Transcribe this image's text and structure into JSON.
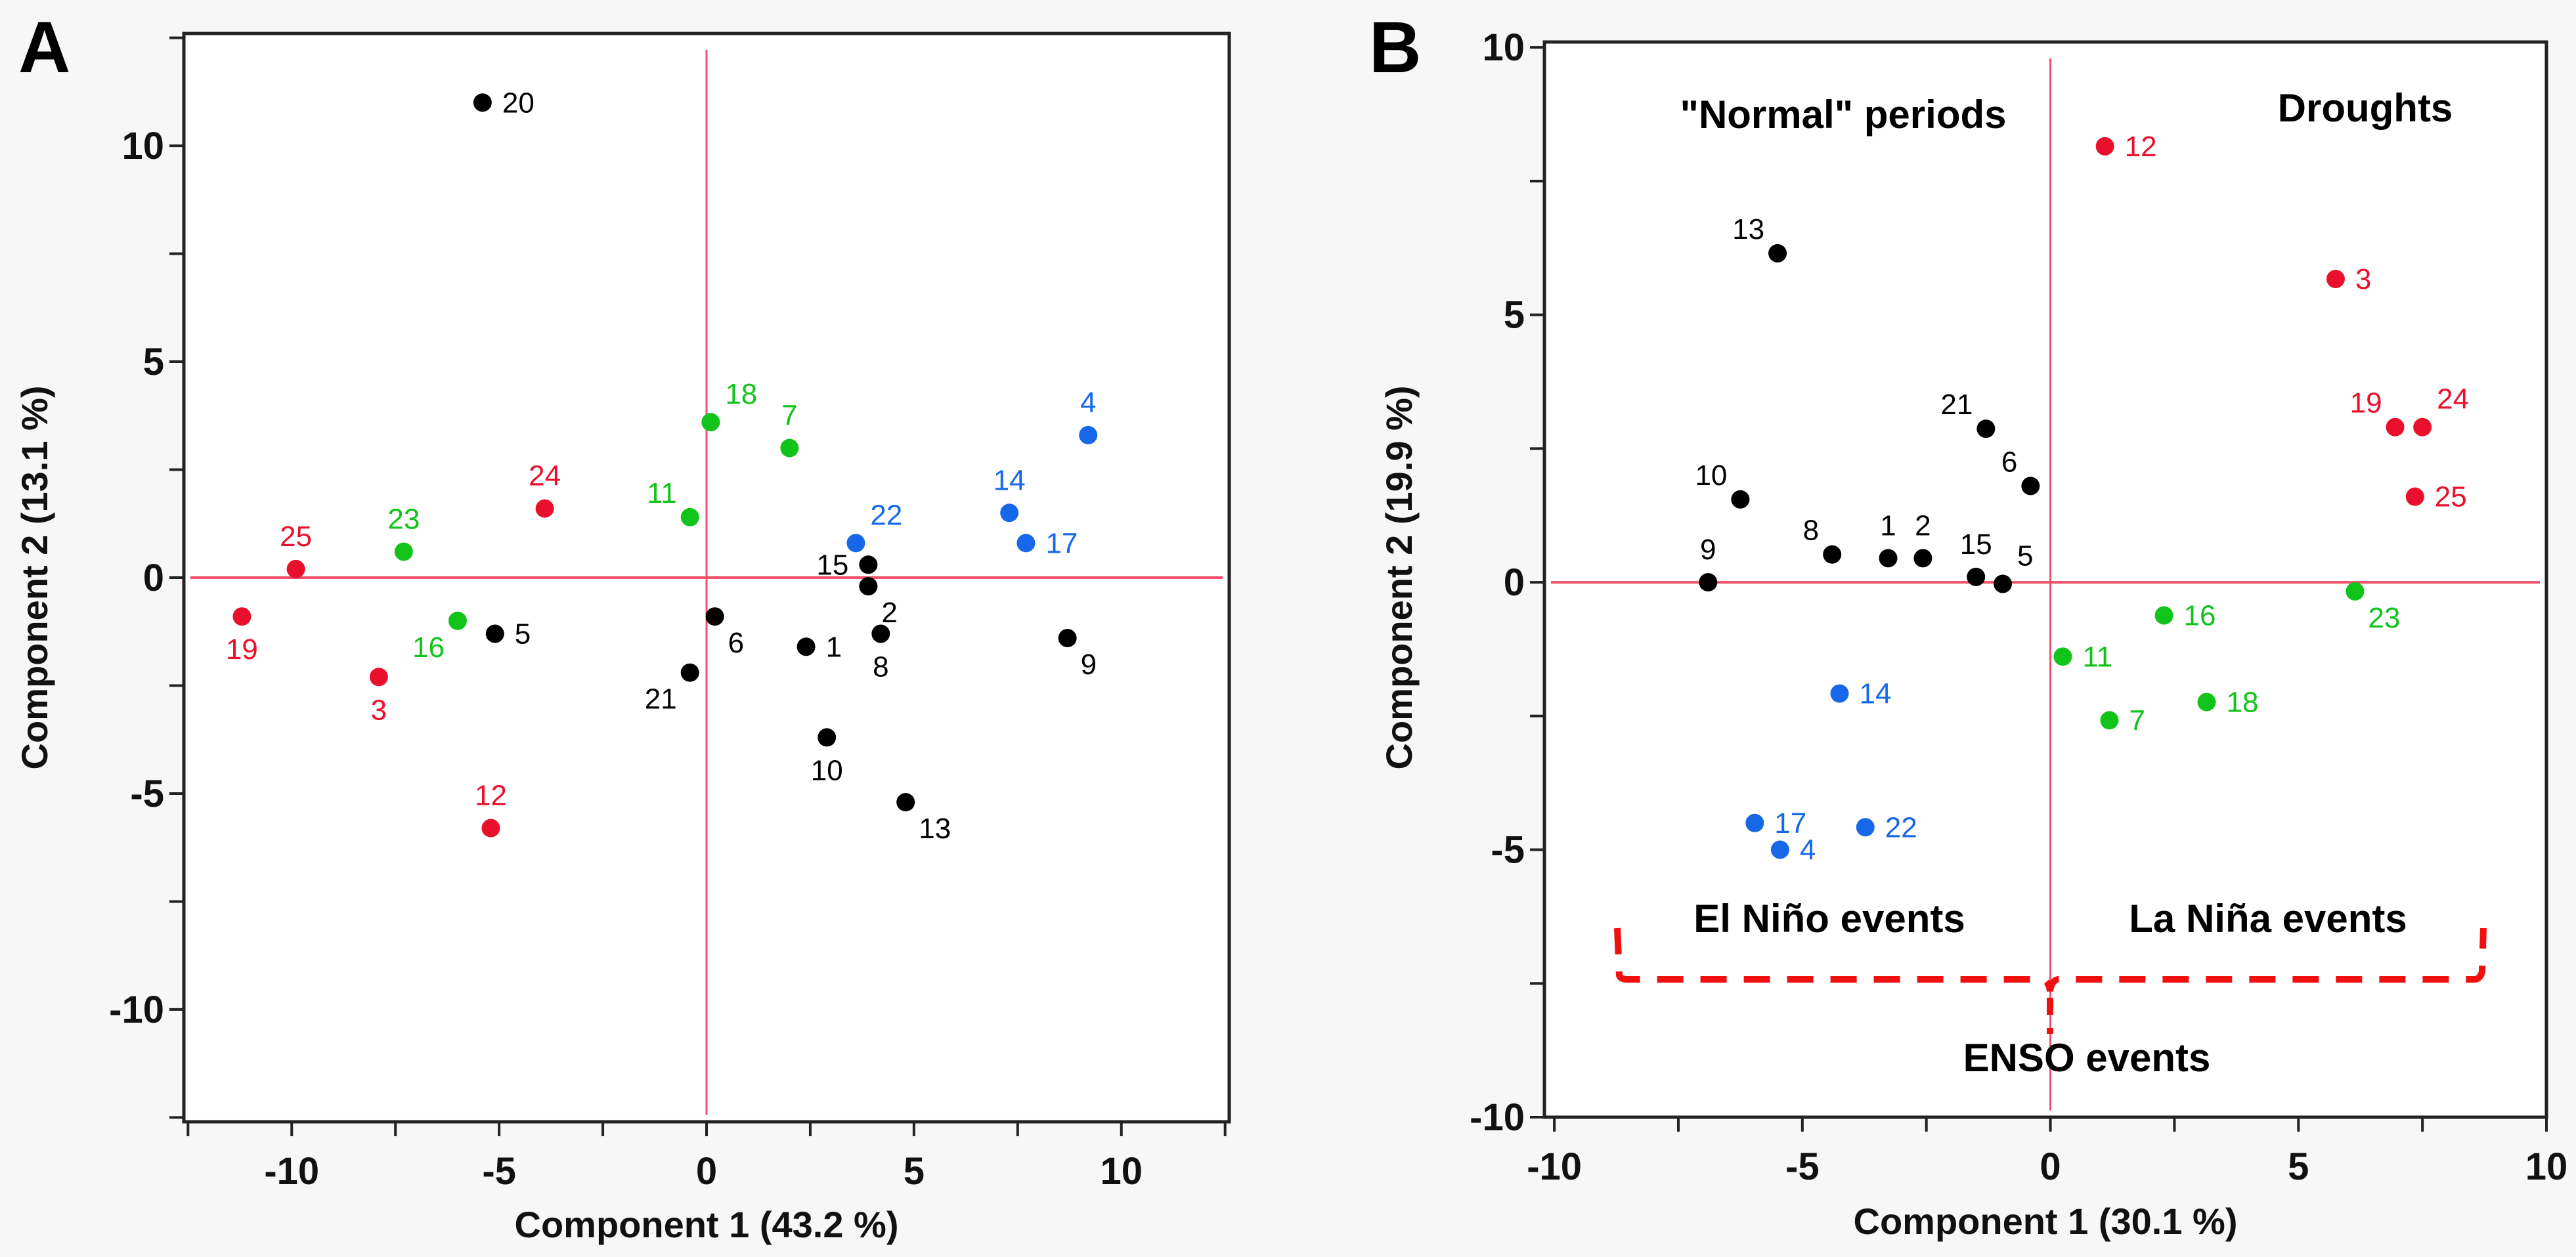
{
  "colors": {
    "black": "#000000",
    "red": "#e8102c",
    "green": "#12c41a",
    "blue": "#1668e8",
    "axis_line": "#f0506a"
  },
  "chart_data": [
    {
      "panel": "A",
      "type": "scatter",
      "xlabel": "Component 1  (43.2 %)",
      "ylabel": "Component 2  (13.1 %)",
      "xlim": [
        -12.6,
        12.6
      ],
      "ylim": [
        -12.6,
        12.6
      ],
      "xticks": [
        -10,
        -5,
        0,
        5,
        10
      ],
      "yticks": [
        -10,
        -5,
        0,
        5,
        10
      ],
      "grid": false,
      "reference_lines": {
        "x": 0,
        "y": 0
      },
      "points": [
        {
          "label": "20",
          "x": -5.4,
          "y": 11.0,
          "group": "black",
          "label_pos": "r"
        },
        {
          "label": "18",
          "x": 0.1,
          "y": 3.6,
          "group": "green",
          "label_pos": "tr"
        },
        {
          "label": "7",
          "x": 2.0,
          "y": 3.0,
          "group": "green",
          "label_pos": "t"
        },
        {
          "label": "4",
          "x": 9.2,
          "y": 3.3,
          "group": "blue",
          "label_pos": "t"
        },
        {
          "label": "24",
          "x": -3.9,
          "y": 1.6,
          "group": "red",
          "label_pos": "t"
        },
        {
          "label": "11",
          "x": -0.4,
          "y": 1.4,
          "group": "green",
          "label_pos": "tl"
        },
        {
          "label": "23",
          "x": -7.3,
          "y": 0.6,
          "group": "green",
          "label_pos": "t"
        },
        {
          "label": "25",
          "x": -9.9,
          "y": 0.2,
          "group": "red",
          "label_pos": "t"
        },
        {
          "label": "22",
          "x": 3.6,
          "y": 0.8,
          "group": "blue",
          "label_pos": "tr"
        },
        {
          "label": "14",
          "x": 7.3,
          "y": 1.5,
          "group": "blue",
          "label_pos": "t"
        },
        {
          "label": "17",
          "x": 7.7,
          "y": 0.8,
          "group": "blue",
          "label_pos": "r"
        },
        {
          "label": "15",
          "x": 3.9,
          "y": 0.3,
          "group": "black",
          "label_pos": "l"
        },
        {
          "label": "2",
          "x": 3.9,
          "y": -0.2,
          "group": "black",
          "label_pos": "br"
        },
        {
          "label": "19",
          "x": -11.2,
          "y": -0.9,
          "group": "red",
          "label_pos": "b"
        },
        {
          "label": "16",
          "x": -6.0,
          "y": -1.0,
          "group": "green",
          "label_pos": "bl"
        },
        {
          "label": "5",
          "x": -5.1,
          "y": -1.3,
          "group": "black",
          "label_pos": "r"
        },
        {
          "label": "6",
          "x": 0.2,
          "y": -0.9,
          "group": "black",
          "label_pos": "br"
        },
        {
          "label": "1",
          "x": 2.4,
          "y": -1.6,
          "group": "black",
          "label_pos": "r"
        },
        {
          "label": "8",
          "x": 4.2,
          "y": -1.3,
          "group": "black",
          "label_pos": "b"
        },
        {
          "label": "9",
          "x": 8.7,
          "y": -1.4,
          "group": "black",
          "label_pos": "br"
        },
        {
          "label": "21",
          "x": -0.4,
          "y": -2.2,
          "group": "black",
          "label_pos": "bl"
        },
        {
          "label": "3",
          "x": -7.9,
          "y": -2.3,
          "group": "red",
          "label_pos": "b"
        },
        {
          "label": "10",
          "x": 2.9,
          "y": -3.7,
          "group": "black",
          "label_pos": "b"
        },
        {
          "label": "13",
          "x": 4.8,
          "y": -5.2,
          "group": "black",
          "label_pos": "br"
        },
        {
          "label": "12",
          "x": -5.2,
          "y": -5.8,
          "group": "red",
          "label_pos": "t"
        }
      ]
    },
    {
      "panel": "B",
      "type": "scatter",
      "xlabel": "Component 1  (30.1 %)",
      "ylabel": "Component 2  (19.9 %)",
      "xlim": [
        -10.2,
        10
      ],
      "ylim": [
        -10,
        10.1
      ],
      "xticks": [
        -10,
        -5,
        0,
        5,
        10
      ],
      "yticks": [
        -10,
        -5,
        0,
        5,
        10
      ],
      "grid": false,
      "reference_lines": {
        "x": 0,
        "y": 0
      },
      "annotations": {
        "normal": "\"Normal\" periods",
        "droughts": "Droughts",
        "el_nino": "El Niño events",
        "la_nina": "La Niña events",
        "enso": "ENSO events"
      },
      "points": [
        {
          "label": "12",
          "x": 1.1,
          "y": 8.15,
          "group": "red",
          "label_pos": "r"
        },
        {
          "label": "13",
          "x": -5.5,
          "y": 6.15,
          "group": "black",
          "label_pos": "tl"
        },
        {
          "label": "3",
          "x": 5.75,
          "y": 5.67,
          "group": "red",
          "label_pos": "r"
        },
        {
          "label": "19",
          "x": 6.95,
          "y": 2.9,
          "group": "red",
          "label_pos": "tl"
        },
        {
          "label": "24",
          "x": 7.5,
          "y": 2.9,
          "group": "red",
          "label_pos": "tr"
        },
        {
          "label": "25",
          "x": 7.35,
          "y": 1.6,
          "group": "red",
          "label_pos": "r"
        },
        {
          "label": "21",
          "x": -1.3,
          "y": 2.87,
          "group": "black",
          "label_pos": "tl"
        },
        {
          "label": "6",
          "x": -0.4,
          "y": 1.8,
          "group": "black",
          "label_pos": "tl"
        },
        {
          "label": "10",
          "x": -6.25,
          "y": 1.55,
          "group": "black",
          "label_pos": "tl"
        },
        {
          "label": "8",
          "x": -4.4,
          "y": 0.52,
          "group": "black",
          "label_pos": "tl"
        },
        {
          "label": "1",
          "x": -3.27,
          "y": 0.45,
          "group": "black",
          "label_pos": "t"
        },
        {
          "label": "2",
          "x": -2.57,
          "y": 0.45,
          "group": "black",
          "label_pos": "t"
        },
        {
          "label": "15",
          "x": -1.5,
          "y": 0.1,
          "group": "black",
          "label_pos": "t"
        },
        {
          "label": "5",
          "x": -0.96,
          "y": -0.03,
          "group": "black",
          "label_pos": "tr"
        },
        {
          "label": "9",
          "x": -6.9,
          "y": 0.0,
          "group": "black",
          "label_pos": "t"
        },
        {
          "label": "23",
          "x": 6.14,
          "y": -0.17,
          "group": "green",
          "label_pos": "br"
        },
        {
          "label": "16",
          "x": 2.29,
          "y": -0.62,
          "group": "green",
          "label_pos": "r"
        },
        {
          "label": "11",
          "x": 0.25,
          "y": -1.39,
          "group": "green",
          "label_pos": "r"
        },
        {
          "label": "14",
          "x": -4.25,
          "y": -2.08,
          "group": "blue",
          "label_pos": "r"
        },
        {
          "label": "18",
          "x": 3.15,
          "y": -2.24,
          "group": "green",
          "label_pos": "r"
        },
        {
          "label": "7",
          "x": 1.19,
          "y": -2.58,
          "group": "green",
          "label_pos": "r"
        },
        {
          "label": "17",
          "x": -5.96,
          "y": -4.5,
          "group": "blue",
          "label_pos": "r"
        },
        {
          "label": "22",
          "x": -3.73,
          "y": -4.58,
          "group": "blue",
          "label_pos": "r"
        },
        {
          "label": "4",
          "x": -5.45,
          "y": -5.0,
          "group": "blue",
          "label_pos": "r"
        }
      ]
    }
  ]
}
